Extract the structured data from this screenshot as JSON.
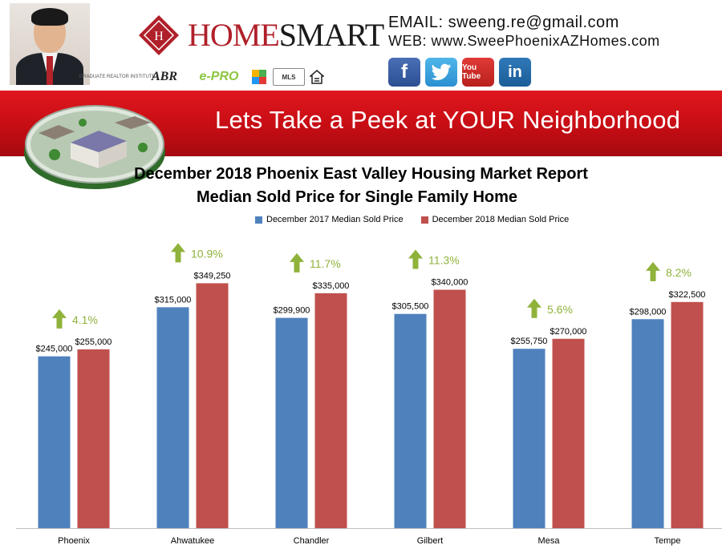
{
  "header": {
    "brand_left": "HOME",
    "brand_right": "SMART",
    "brand_color": "#b0202a",
    "email_line": "EMAIL: sweeng.re@gmail.com",
    "web_line": "WEB: www.SweePhoenixAZHomes.com",
    "badges": [
      "GRADUATE REALTOR INSTITUTE",
      "ABR",
      "e-PRO",
      "MLS"
    ],
    "social": [
      {
        "icon": "facebook-icon",
        "glyph": "f"
      },
      {
        "icon": "twitter-icon",
        "glyph": ""
      },
      {
        "icon": "youtube-icon",
        "glyph": "You Tube"
      },
      {
        "icon": "linkedin-icon",
        "glyph": "in"
      }
    ]
  },
  "banner": {
    "text": "Lets Take a Peek at YOUR Neighborhood",
    "color": "#d0121a"
  },
  "chart_data": {
    "type": "bar",
    "title": "December 2018 Phoenix East Valley Housing Market Report",
    "subtitle": "Median Sold Price for Single Family Home",
    "categories": [
      "Phoenix",
      "Ahwatukee",
      "Chandler",
      "Gilbert",
      "Mesa",
      "Tempe"
    ],
    "series": [
      {
        "name": "December 2017 Median Sold Price",
        "color": "#4f81bd",
        "values": [
          245000,
          315000,
          299900,
          305500,
          255750,
          298000
        ],
        "labels": [
          "$245,000",
          "$315,000",
          "$299,900",
          "$305,500",
          "$255,750",
          "$298,000"
        ]
      },
      {
        "name": "December 2018 Median Sold Price",
        "color": "#c0504d",
        "values": [
          255000,
          349250,
          335000,
          340000,
          270000,
          322500
        ],
        "labels": [
          "$255,000",
          "$349,250",
          "$335,000",
          "$340,000",
          "$270,000",
          "$322,500"
        ]
      }
    ],
    "changes": [
      "4.1%",
      "10.9%",
      "11.7%",
      "11.3%",
      "5.6%",
      "8.2%"
    ],
    "change_color": "#8fb23a",
    "ylim": [
      0,
      400000
    ],
    "grid": false,
    "legend_position": "top"
  }
}
